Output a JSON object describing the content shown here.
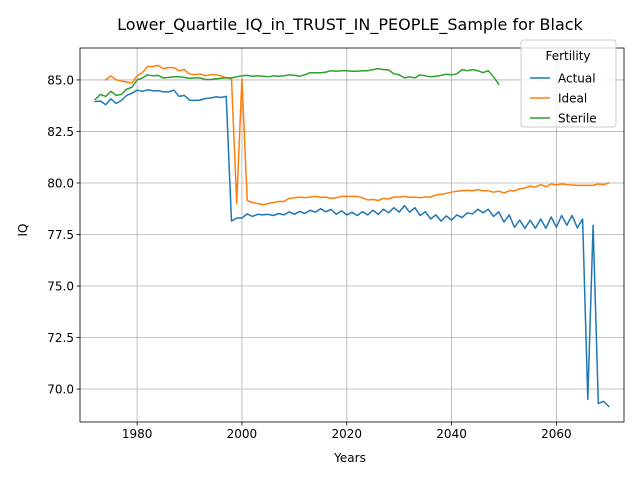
{
  "chart_data": {
    "type": "line",
    "title": "Lower_Quartile_IQ_in_TRUST_IN_PEOPLE_Sample for Black",
    "xlabel": "Years",
    "ylabel": "IQ",
    "xlim": [
      1969.1,
      2072.9
    ],
    "ylim": [
      68.4,
      86.55
    ],
    "xticks": [
      1980,
      2000,
      2020,
      2040,
      2060
    ],
    "yticks": [
      70.0,
      72.5,
      75.0,
      77.5,
      80.0,
      82.5,
      85.0
    ],
    "grid": true,
    "legend": {
      "title": "Fertility",
      "placement": "top-right"
    },
    "series": [
      {
        "name": "Actual",
        "color": "#1f77b4",
        "x": [
          1972,
          1973,
          1974,
          1975,
          1976,
          1977,
          1978,
          1979,
          1980,
          1981,
          1982,
          1983,
          1984,
          1985,
          1986,
          1987,
          1988,
          1989,
          1990,
          1991,
          1992,
          1993,
          1994,
          1995,
          1996,
          1997,
          1998,
          1999,
          2000,
          2001,
          2002,
          2003,
          2004,
          2005,
          2006,
          2007,
          2008,
          2009,
          2010,
          2011,
          2012,
          2013,
          2014,
          2015,
          2016,
          2017,
          2018,
          2019,
          2020,
          2021,
          2022,
          2023,
          2024,
          2025,
          2026,
          2027,
          2028,
          2029,
          2030,
          2031,
          2032,
          2033,
          2034,
          2035,
          2036,
          2037,
          2038,
          2039,
          2040,
          2041,
          2042,
          2043,
          2044,
          2045,
          2046,
          2047,
          2048,
          2049,
          2050,
          2051,
          2052,
          2053,
          2054,
          2055,
          2056,
          2057,
          2058,
          2059,
          2060,
          2061,
          2062,
          2063,
          2064,
          2065,
          2066,
          2067,
          2068,
          2069,
          2070
        ],
        "values": [
          83.95,
          83.98,
          83.8,
          84.08,
          83.86,
          84.0,
          84.25,
          84.35,
          84.5,
          84.45,
          84.52,
          84.48,
          84.48,
          84.42,
          84.42,
          84.5,
          84.2,
          84.25,
          84.02,
          84.0,
          84.02,
          84.1,
          84.12,
          84.18,
          84.15,
          84.2,
          78.15,
          78.3,
          78.3,
          78.5,
          78.38,
          78.48,
          78.45,
          78.48,
          78.42,
          78.52,
          78.45,
          78.6,
          78.48,
          78.62,
          78.52,
          78.68,
          78.58,
          78.75,
          78.6,
          78.72,
          78.48,
          78.65,
          78.45,
          78.58,
          78.42,
          78.6,
          78.45,
          78.68,
          78.48,
          78.72,
          78.55,
          78.8,
          78.58,
          78.9,
          78.58,
          78.8,
          78.42,
          78.6,
          78.25,
          78.45,
          78.15,
          78.4,
          78.2,
          78.45,
          78.32,
          78.55,
          78.5,
          78.72,
          78.55,
          78.72,
          78.38,
          78.6,
          78.1,
          78.45,
          77.85,
          78.2,
          77.8,
          78.2,
          77.8,
          78.25,
          77.8,
          78.35,
          77.85,
          78.42,
          77.95,
          78.42,
          77.82,
          78.25,
          69.5,
          77.95,
          69.3,
          69.4,
          69.15
        ]
      },
      {
        "name": "Ideal",
        "color": "#ff7f0e",
        "x": [
          1974,
          1975,
          1976,
          1977,
          1978,
          1979,
          1980,
          1981,
          1982,
          1983,
          1984,
          1985,
          1986,
          1987,
          1988,
          1989,
          1990,
          1991,
          1992,
          1993,
          1994,
          1995,
          1996,
          1997,
          1998,
          1999,
          2000,
          2001,
          2002,
          2003,
          2004,
          2005,
          2006,
          2007,
          2008,
          2009,
          2010,
          2011,
          2012,
          2013,
          2014,
          2015,
          2016,
          2017,
          2018,
          2019,
          2020,
          2021,
          2022,
          2023,
          2024,
          2025,
          2026,
          2027,
          2028,
          2029,
          2030,
          2031,
          2032,
          2033,
          2034,
          2035,
          2036,
          2037,
          2038,
          2039,
          2040,
          2041,
          2042,
          2043,
          2044,
          2045,
          2046,
          2047,
          2048,
          2049,
          2050,
          2051,
          2052,
          2053,
          2054,
          2055,
          2056,
          2057,
          2058,
          2059,
          2060,
          2061,
          2062,
          2063,
          2064,
          2065,
          2066,
          2067,
          2068,
          2069,
          2070
        ],
        "values": [
          85.0,
          85.2,
          85.0,
          84.95,
          84.9,
          84.85,
          85.2,
          85.35,
          85.65,
          85.65,
          85.7,
          85.55,
          85.6,
          85.6,
          85.45,
          85.5,
          85.3,
          85.25,
          85.3,
          85.2,
          85.25,
          85.25,
          85.2,
          85.1,
          85.05,
          79.0,
          85.05,
          79.15,
          79.05,
          79.0,
          78.95,
          79.0,
          79.05,
          79.1,
          79.1,
          79.25,
          79.28,
          79.32,
          79.28,
          79.32,
          79.35,
          79.3,
          79.32,
          79.25,
          79.28,
          79.35,
          79.35,
          79.35,
          79.35,
          79.28,
          79.18,
          79.2,
          79.15,
          79.25,
          79.22,
          79.32,
          79.32,
          79.35,
          79.3,
          79.32,
          79.28,
          79.32,
          79.32,
          79.42,
          79.45,
          79.5,
          79.55,
          79.6,
          79.62,
          79.65,
          79.62,
          79.68,
          79.62,
          79.62,
          79.55,
          79.6,
          79.52,
          79.62,
          79.62,
          79.72,
          79.75,
          79.85,
          79.8,
          79.92,
          79.82,
          79.95,
          79.9,
          79.95,
          79.92,
          79.9,
          79.88,
          79.88,
          79.88,
          79.88,
          79.95,
          79.92,
          80.0
        ]
      },
      {
        "name": "Sterile",
        "color": "#2ca02c",
        "x": [
          1972,
          1973,
          1974,
          1975,
          1976,
          1977,
          1978,
          1979,
          1980,
          1981,
          1982,
          1983,
          1984,
          1985,
          1986,
          1987,
          1988,
          1989,
          1990,
          1991,
          1992,
          1993,
          1994,
          1995,
          1996,
          1997,
          1998,
          1999,
          2000,
          2001,
          2002,
          2003,
          2004,
          2005,
          2006,
          2007,
          2008,
          2009,
          2010,
          2011,
          2012,
          2013,
          2014,
          2015,
          2016,
          2017,
          2018,
          2019,
          2020,
          2021,
          2022,
          2023,
          2024,
          2025,
          2026,
          2027,
          2028,
          2029,
          2030,
          2031,
          2032,
          2033,
          2034,
          2035,
          2036,
          2037,
          2038,
          2039,
          2040,
          2041,
          2042,
          2043,
          2044,
          2045,
          2046,
          2047,
          2048,
          2049
        ],
        "values": [
          84.05,
          84.3,
          84.2,
          84.45,
          84.25,
          84.3,
          84.55,
          84.65,
          85.0,
          85.1,
          85.25,
          85.2,
          85.22,
          85.1,
          85.12,
          85.15,
          85.15,
          85.12,
          85.08,
          85.1,
          85.1,
          85.02,
          85.02,
          85.05,
          85.08,
          85.1,
          85.1,
          85.15,
          85.2,
          85.22,
          85.18,
          85.2,
          85.18,
          85.15,
          85.2,
          85.18,
          85.2,
          85.25,
          85.22,
          85.18,
          85.25,
          85.35,
          85.35,
          85.35,
          85.38,
          85.45,
          85.42,
          85.45,
          85.45,
          85.42,
          85.42,
          85.45,
          85.45,
          85.5,
          85.55,
          85.5,
          85.48,
          85.3,
          85.25,
          85.1,
          85.15,
          85.1,
          85.25,
          85.2,
          85.15,
          85.18,
          85.22,
          85.28,
          85.25,
          85.3,
          85.5,
          85.45,
          85.5,
          85.45,
          85.35,
          85.45,
          85.15,
          84.8
        ]
      }
    ]
  }
}
